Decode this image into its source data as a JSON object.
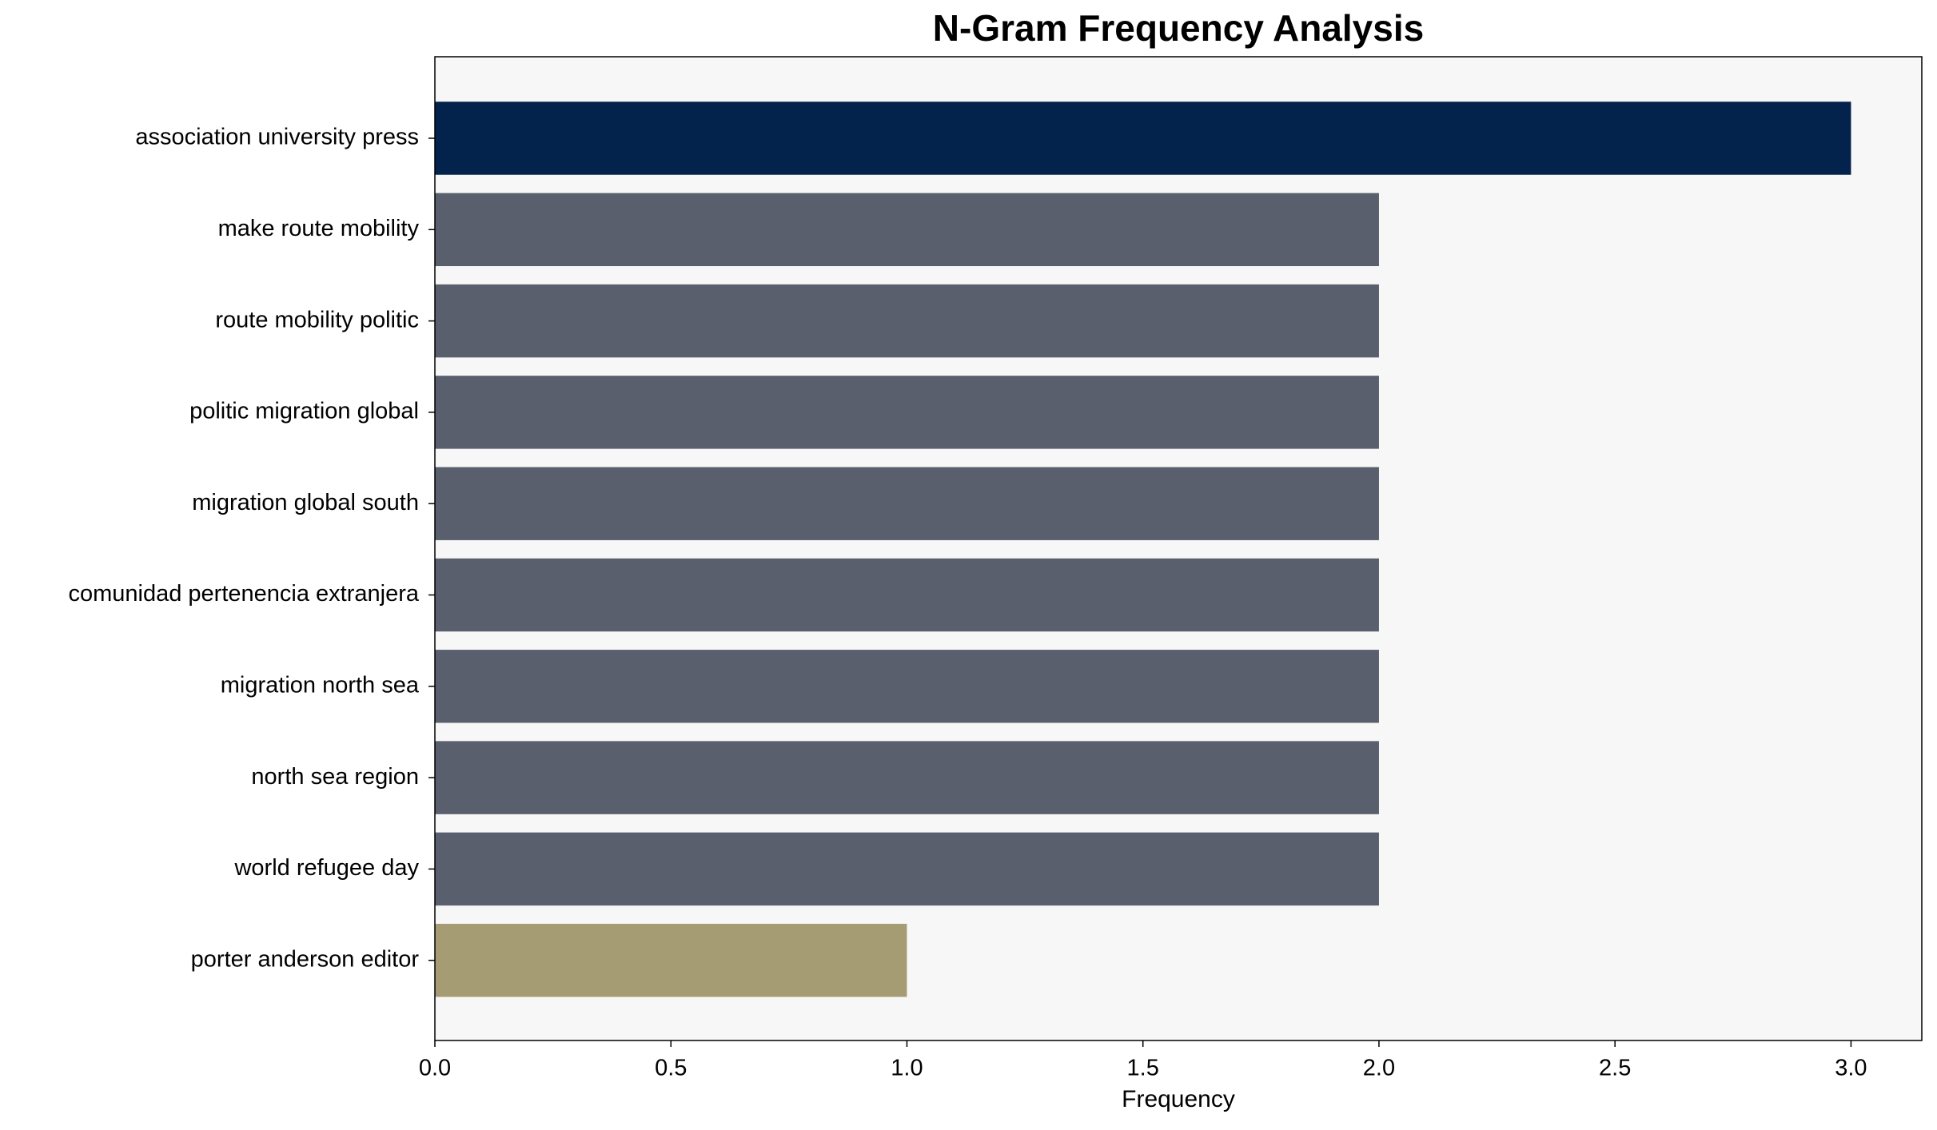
{
  "chart_data": {
    "type": "bar",
    "orientation": "horizontal",
    "title": "N-Gram Frequency Analysis",
    "x_label": "Frequency",
    "categories": [
      "association university press",
      "make route mobility",
      "route mobility politic",
      "politic migration global",
      "migration global south",
      "comunidad pertenencia extranjera",
      "migration north sea",
      "north sea region",
      "world refugee day",
      "porter anderson editor"
    ],
    "values": [
      3,
      2,
      2,
      2,
      2,
      2,
      2,
      2,
      2,
      1
    ],
    "colors": [
      "#03224c",
      "#5a5f6e",
      "#5a5f6e",
      "#5a5f6e",
      "#5a5f6e",
      "#5a5f6e",
      "#5a5f6e",
      "#5a5f6e",
      "#5a5f6e",
      "#a59c74"
    ],
    "xlim": [
      0,
      3.15
    ],
    "xticks": [
      {
        "value": 0,
        "label": "0.0"
      },
      {
        "value": 0.5,
        "label": "0.5"
      },
      {
        "value": 1,
        "label": "1.0"
      },
      {
        "value": 1.5,
        "label": "1.5"
      },
      {
        "value": 2,
        "label": "2.0"
      },
      {
        "value": 2.5,
        "label": "2.5"
      },
      {
        "value": 3,
        "label": "3.0"
      }
    ],
    "grid": false
  }
}
